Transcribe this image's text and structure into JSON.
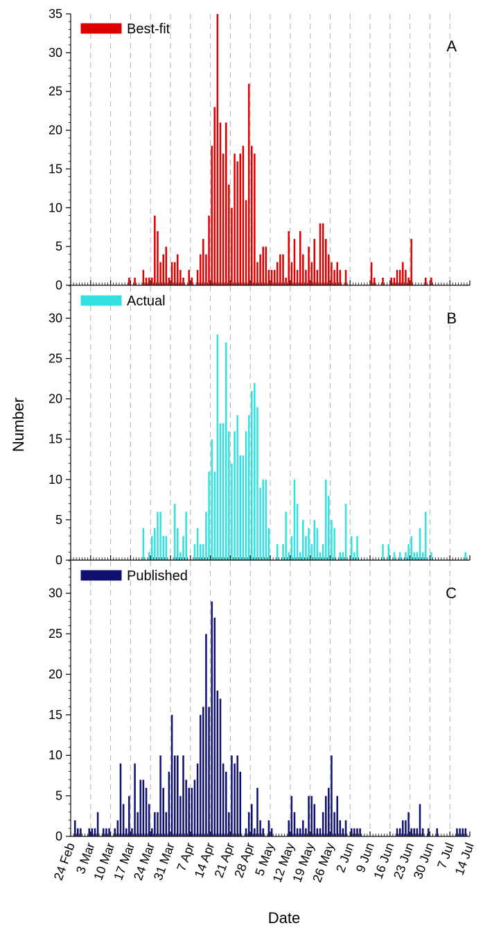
{
  "chart_data": [
    {
      "type": "bar",
      "panel_letter": "A",
      "ylim": [
        0,
        35
      ],
      "yticks": [
        0,
        5,
        10,
        15,
        20,
        25,
        30,
        35
      ],
      "legend": {
        "label": "Best-fit",
        "placement": "top-left"
      },
      "bar_color": "#dd0000",
      "x_start": "24 Feb",
      "values": [
        0,
        0,
        0,
        0,
        0,
        0,
        0,
        0,
        0,
        0,
        0,
        0,
        0,
        0,
        0,
        0,
        0,
        0,
        0,
        0,
        1,
        0,
        1,
        0,
        0,
        2,
        1,
        1,
        1,
        9,
        7,
        3,
        4,
        5,
        1,
        3,
        3,
        4,
        2,
        1,
        0,
        2,
        1,
        0,
        2,
        4,
        6,
        4,
        9,
        18,
        23,
        35,
        21,
        17,
        21,
        13,
        10,
        17,
        16,
        17,
        18,
        11,
        26,
        18,
        17,
        3,
        4,
        5,
        5,
        2,
        2,
        2,
        3,
        4,
        4,
        1,
        7,
        3,
        6,
        2,
        7,
        4,
        2,
        5,
        3,
        6,
        2,
        8,
        8,
        6,
        4,
        3,
        2,
        3,
        2,
        0,
        2,
        0,
        0,
        0,
        0,
        0,
        0,
        0,
        0,
        3,
        1,
        0,
        0,
        1,
        0,
        0,
        1,
        1,
        2,
        2,
        3,
        2,
        1,
        6,
        0,
        0,
        0,
        0,
        1,
        0,
        1,
        0,
        0,
        0,
        0,
        0,
        0,
        0,
        0,
        0,
        0,
        0,
        0,
        0,
        0
      ]
    },
    {
      "type": "bar",
      "panel_letter": "B",
      "ylim": [
        0,
        34
      ],
      "yticks": [
        0,
        5,
        10,
        15,
        20,
        25,
        30
      ],
      "legend": {
        "label": "Actual",
        "placement": "top-left"
      },
      "bar_color": "#33e0e0",
      "x_start": "24 Feb",
      "values": [
        0,
        0,
        0,
        0,
        0,
        0,
        0,
        0,
        0,
        0,
        0,
        0,
        0,
        0,
        0,
        0,
        0,
        0,
        0,
        0,
        0,
        0,
        0,
        0,
        0,
        4,
        0,
        1,
        3,
        4,
        6,
        6,
        3,
        3,
        0,
        0,
        7,
        4,
        1,
        3,
        6,
        0,
        0,
        2,
        4,
        2,
        2,
        6,
        11,
        15,
        11,
        28,
        17,
        17,
        27,
        16,
        12,
        16,
        18,
        13,
        13,
        16,
        18,
        21,
        22,
        19,
        9,
        10,
        10,
        4,
        0,
        0,
        2,
        0,
        2,
        6,
        1,
        3,
        10,
        7,
        1,
        5,
        3,
        4,
        2,
        5,
        4,
        1,
        2,
        10,
        8,
        5,
        4,
        0,
        1,
        1,
        7,
        0,
        3,
        1,
        3,
        0,
        0,
        0,
        0,
        0,
        0,
        0,
        0,
        2,
        0,
        2,
        0,
        1,
        0,
        1,
        0,
        1,
        2,
        3,
        1,
        1,
        4,
        1,
        6,
        0,
        1,
        0,
        0,
        0,
        0,
        0,
        0,
        0,
        0,
        0,
        0,
        0,
        1,
        0,
        0
      ]
    },
    {
      "type": "bar",
      "panel_letter": "C",
      "ylim": [
        0,
        34
      ],
      "yticks": [
        0,
        5,
        10,
        15,
        20,
        25,
        30
      ],
      "legend": {
        "label": "Published",
        "placement": "top-left"
      },
      "bar_color": "#101070",
      "x_start": "24 Feb",
      "values": [
        0,
        2,
        1,
        1,
        0,
        0,
        1,
        1,
        1,
        3,
        0,
        1,
        1,
        1,
        0,
        1,
        2,
        9,
        4,
        1,
        5,
        1,
        9,
        3,
        7,
        7,
        6,
        4,
        1,
        3,
        3,
        10,
        6,
        3,
        8,
        15,
        10,
        10,
        5,
        10,
        7,
        6,
        6,
        7,
        9,
        15,
        16,
        25,
        16,
        29,
        27,
        18,
        17,
        9,
        8,
        3,
        10,
        9,
        10,
        8,
        0,
        1,
        3,
        4,
        1,
        6,
        2,
        1,
        0,
        2,
        1,
        0,
        0,
        0,
        0,
        0,
        2,
        5,
        3,
        1,
        1,
        2,
        1,
        5,
        5,
        4,
        1,
        1,
        3,
        5,
        6,
        10,
        3,
        5,
        2,
        1,
        2,
        0,
        1,
        1,
        1,
        1,
        0,
        0,
        0,
        0,
        0,
        0,
        0,
        0,
        0,
        0,
        0,
        0,
        1,
        1,
        2,
        2,
        3,
        1,
        1,
        1,
        4,
        1,
        0,
        1,
        0,
        0,
        1,
        0,
        0,
        0,
        0,
        0,
        0,
        1,
        1,
        1,
        1,
        0,
        0
      ]
    }
  ],
  "x_axis": {
    "label": "Date",
    "tick_labels": [
      "24 Feb",
      "3 Mar",
      "10 Mar",
      "17 Mar",
      "24 Mar",
      "31 Mar",
      "7 Apr",
      "14 Apr",
      "21 Apr",
      "28 Apr",
      "5 May",
      "12 May",
      "19 May",
      "26 May",
      "2 Jun",
      "9 Jun",
      "16 Jun",
      "23 Jun",
      "30 Jun",
      "7 Jul",
      "14 Jul"
    ],
    "tick_step_days": 7,
    "range_days": [
      0,
      140
    ]
  },
  "y_axis": {
    "label": "Number"
  },
  "grid": "vertical dashed at weekly ticks"
}
